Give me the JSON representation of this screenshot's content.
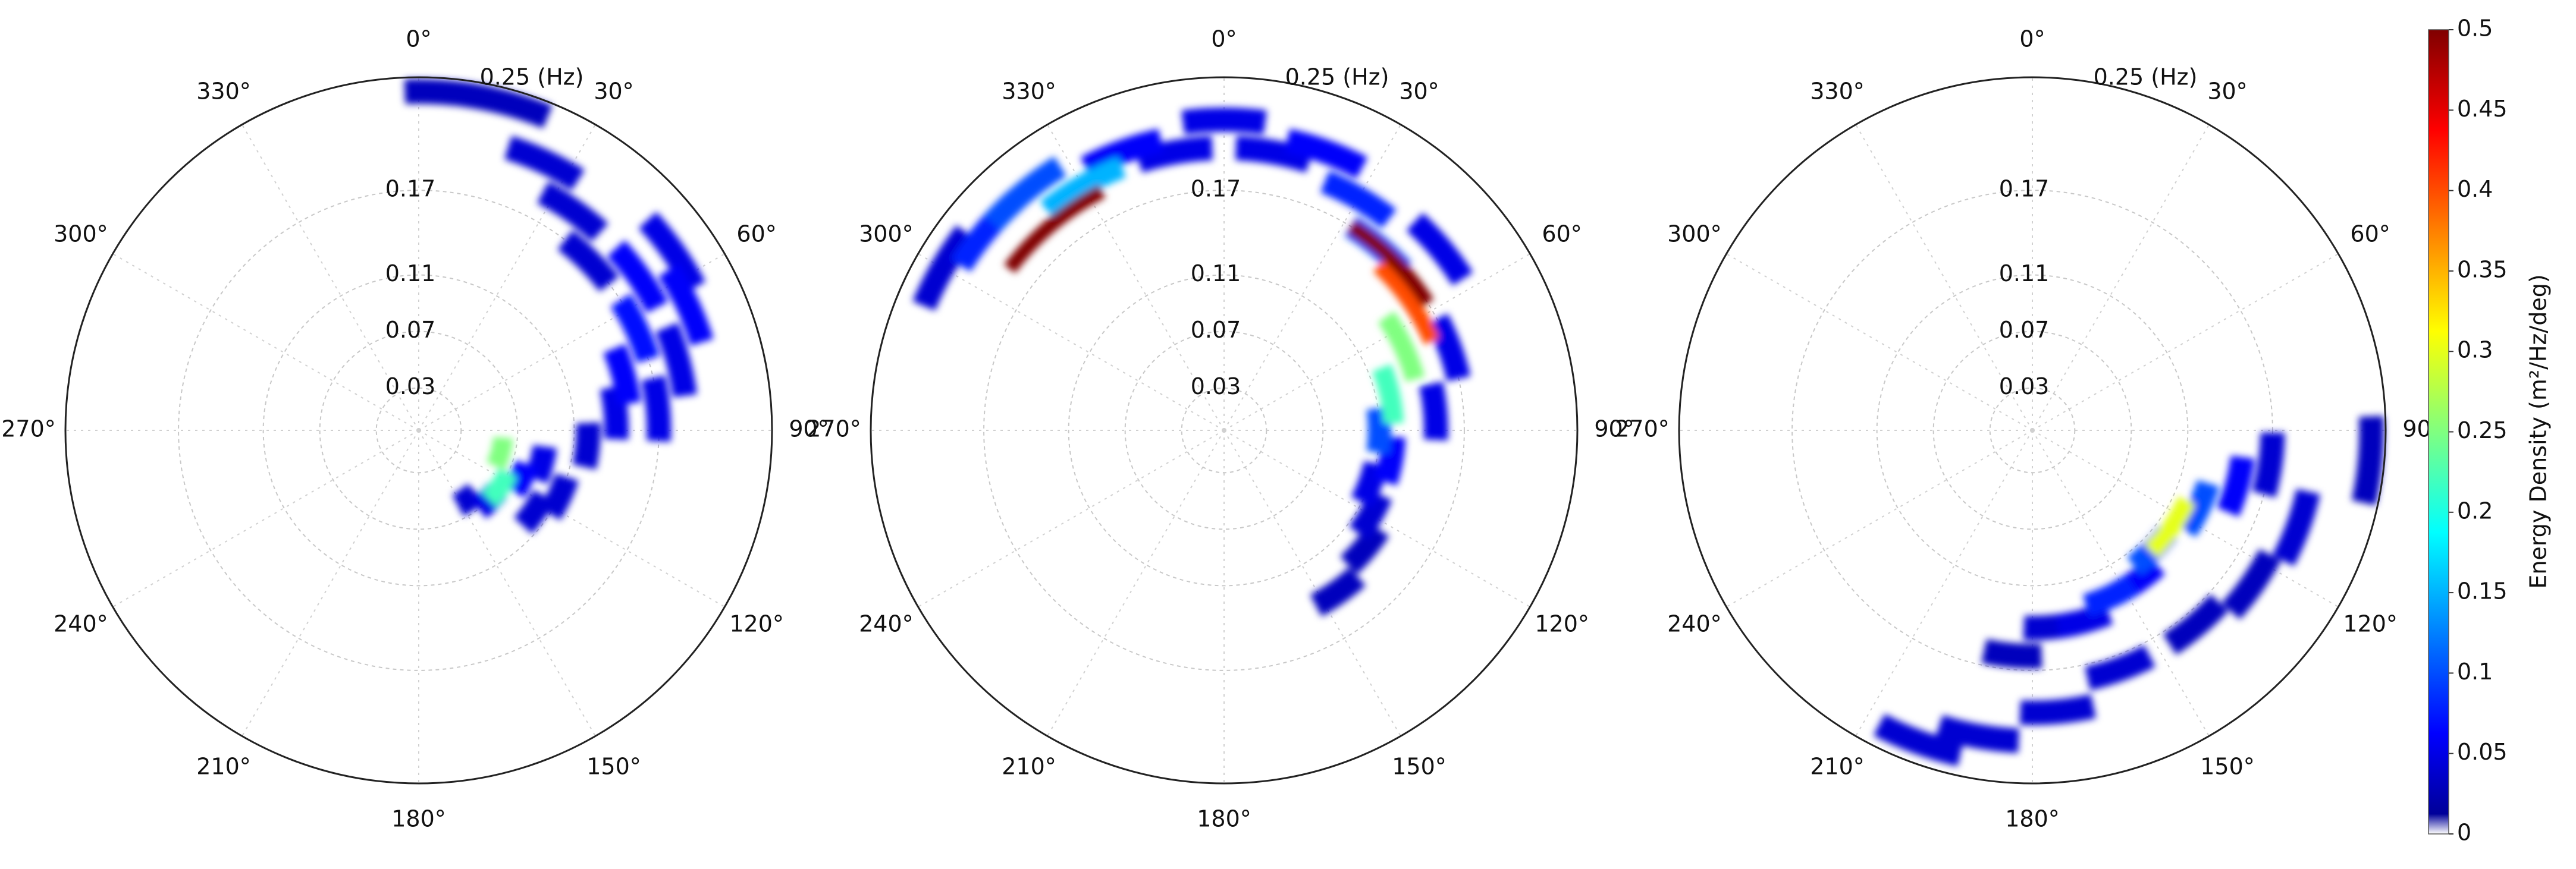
{
  "chart_data": [
    {
      "type": "polar",
      "rlim": [
        0,
        0.25
      ],
      "colormap": "jet",
      "rticks": [
        0.03,
        0.07,
        0.11,
        0.17,
        {
          "value": 0.25,
          "label": "0.25 (Hz)"
        }
      ],
      "thetaticks": [
        {
          "value": 0,
          "label": "0°"
        },
        {
          "value": 30,
          "label": "30°"
        },
        {
          "value": 60,
          "label": "60°"
        },
        {
          "value": 90,
          "label": "90°"
        },
        {
          "value": 120,
          "label": "120°"
        },
        {
          "value": 150,
          "label": "150°"
        },
        {
          "value": 180,
          "label": "180°"
        },
        {
          "value": 210,
          "label": "210°"
        },
        {
          "value": 240,
          "label": "240°"
        },
        {
          "value": 270,
          "label": "270°"
        },
        {
          "value": 300,
          "label": "300°"
        },
        {
          "value": 330,
          "label": "330°"
        }
      ],
      "direction": [
        5,
        15,
        25,
        35,
        45,
        55,
        55,
        65,
        65,
        75,
        75,
        85,
        85,
        95,
        105,
        105,
        115,
        125,
        125,
        135,
        145,
        115
      ],
      "frequency": [
        0.24,
        0.24,
        0.21,
        0.19,
        0.17,
        0.22,
        0.19,
        0.21,
        0.17,
        0.19,
        0.15,
        0.17,
        0.14,
        0.12,
        0.09,
        0.06,
        0.08,
        0.07,
        0.1,
        0.07,
        0.06,
        0.11
      ],
      "values": [
        0.03,
        0.03,
        0.04,
        0.04,
        0.04,
        0.05,
        0.06,
        0.06,
        0.07,
        0.05,
        0.06,
        0.05,
        0.05,
        0.04,
        0.05,
        0.25,
        0.06,
        0.22,
        0.04,
        0.05,
        0.04,
        0.04
      ]
    },
    {
      "type": "polar",
      "rlim": [
        0,
        0.25
      ],
      "colormap": "jet",
      "rticks": [
        0.03,
        0.07,
        0.11,
        0.17,
        {
          "value": 0.25,
          "label": "0.25 (Hz)"
        }
      ],
      "thetaticks": [
        {
          "value": 0,
          "label": "0°"
        },
        {
          "value": 30,
          "label": "30°"
        },
        {
          "value": 60,
          "label": "60°"
        },
        {
          "value": 90,
          "label": "90°"
        },
        {
          "value": 120,
          "label": "120°"
        },
        {
          "value": 150,
          "label": "150°"
        },
        {
          "value": 180,
          "label": "180°"
        },
        {
          "value": 210,
          "label": "210°"
        },
        {
          "value": 240,
          "label": "240°"
        },
        {
          "value": 270,
          "label": "270°"
        },
        {
          "value": 300,
          "label": "300°"
        },
        {
          "value": 330,
          "label": "330°"
        }
      ],
      "direction": [
        300,
        310,
        320,
        320,
        330,
        340,
        350,
        0,
        10,
        20,
        30,
        40,
        45,
        55,
        50,
        65,
        78,
        90,
        100,
        110,
        120,
        130,
        145,
        70,
        85
      ],
      "frequency": [
        0.23,
        0.22,
        0.19,
        0.22,
        0.2,
        0.21,
        0.2,
        0.22,
        0.2,
        0.21,
        0.19,
        0.17,
        0.17,
        0.16,
        0.2,
        0.14,
        0.12,
        0.11,
        0.12,
        0.11,
        0.12,
        0.13,
        0.14,
        0.17,
        0.15
      ],
      "values": [
        0.04,
        0.08,
        0.5,
        0.1,
        0.15,
        0.06,
        0.05,
        0.05,
        0.05,
        0.06,
        0.08,
        0.1,
        0.5,
        0.4,
        0.05,
        0.25,
        0.22,
        0.1,
        0.06,
        0.05,
        0.04,
        0.03,
        0.03,
        0.05,
        0.05
      ]
    },
    {
      "type": "polar",
      "rlim": [
        0,
        0.25
      ],
      "colormap": "jet",
      "rticks": [
        0.03,
        0.07,
        0.11,
        0.17,
        {
          "value": 0.25,
          "label": "0.25 (Hz)"
        }
      ],
      "thetaticks": [
        {
          "value": 0,
          "label": "0°"
        },
        {
          "value": 30,
          "label": "30°"
        },
        {
          "value": 60,
          "label": "60°"
        },
        {
          "value": 90,
          "label": "90°"
        },
        {
          "value": 120,
          "label": "120°"
        },
        {
          "value": 150,
          "label": "150°"
        },
        {
          "value": 180,
          "label": "180°"
        },
        {
          "value": 210,
          "label": "210°"
        },
        {
          "value": 240,
          "label": "240°"
        },
        {
          "value": 270,
          "label": "270°"
        },
        {
          "value": 300,
          "label": "300°"
        },
        {
          "value": 330,
          "label": "330°"
        }
      ],
      "direction": [
        98,
        105,
        115,
        125,
        135,
        145,
        155,
        165,
        175,
        185,
        160,
        175,
        190,
        200,
        110,
        125,
        95,
        140
      ],
      "frequency": [
        0.17,
        0.15,
        0.13,
        0.12,
        0.12,
        0.13,
        0.13,
        0.14,
        0.14,
        0.16,
        0.18,
        0.2,
        0.22,
        0.235,
        0.2,
        0.19,
        0.24,
        0.18
      ],
      "values": [
        0.04,
        0.06,
        0.1,
        0.3,
        0.1,
        0.06,
        0.08,
        0.05,
        0.04,
        0.03,
        0.04,
        0.04,
        0.04,
        0.04,
        0.04,
        0.03,
        0.03,
        0.03
      ]
    }
  ],
  "colorbar": {
    "label": "Energy Density (m²/Hz/deg)",
    "lim": [
      0,
      0.5
    ],
    "ticks": [
      0,
      0.05,
      0.1,
      0.15,
      0.2,
      0.25,
      0.3,
      0.35,
      0.4,
      0.45,
      0.5
    ],
    "colormap": "jet"
  }
}
